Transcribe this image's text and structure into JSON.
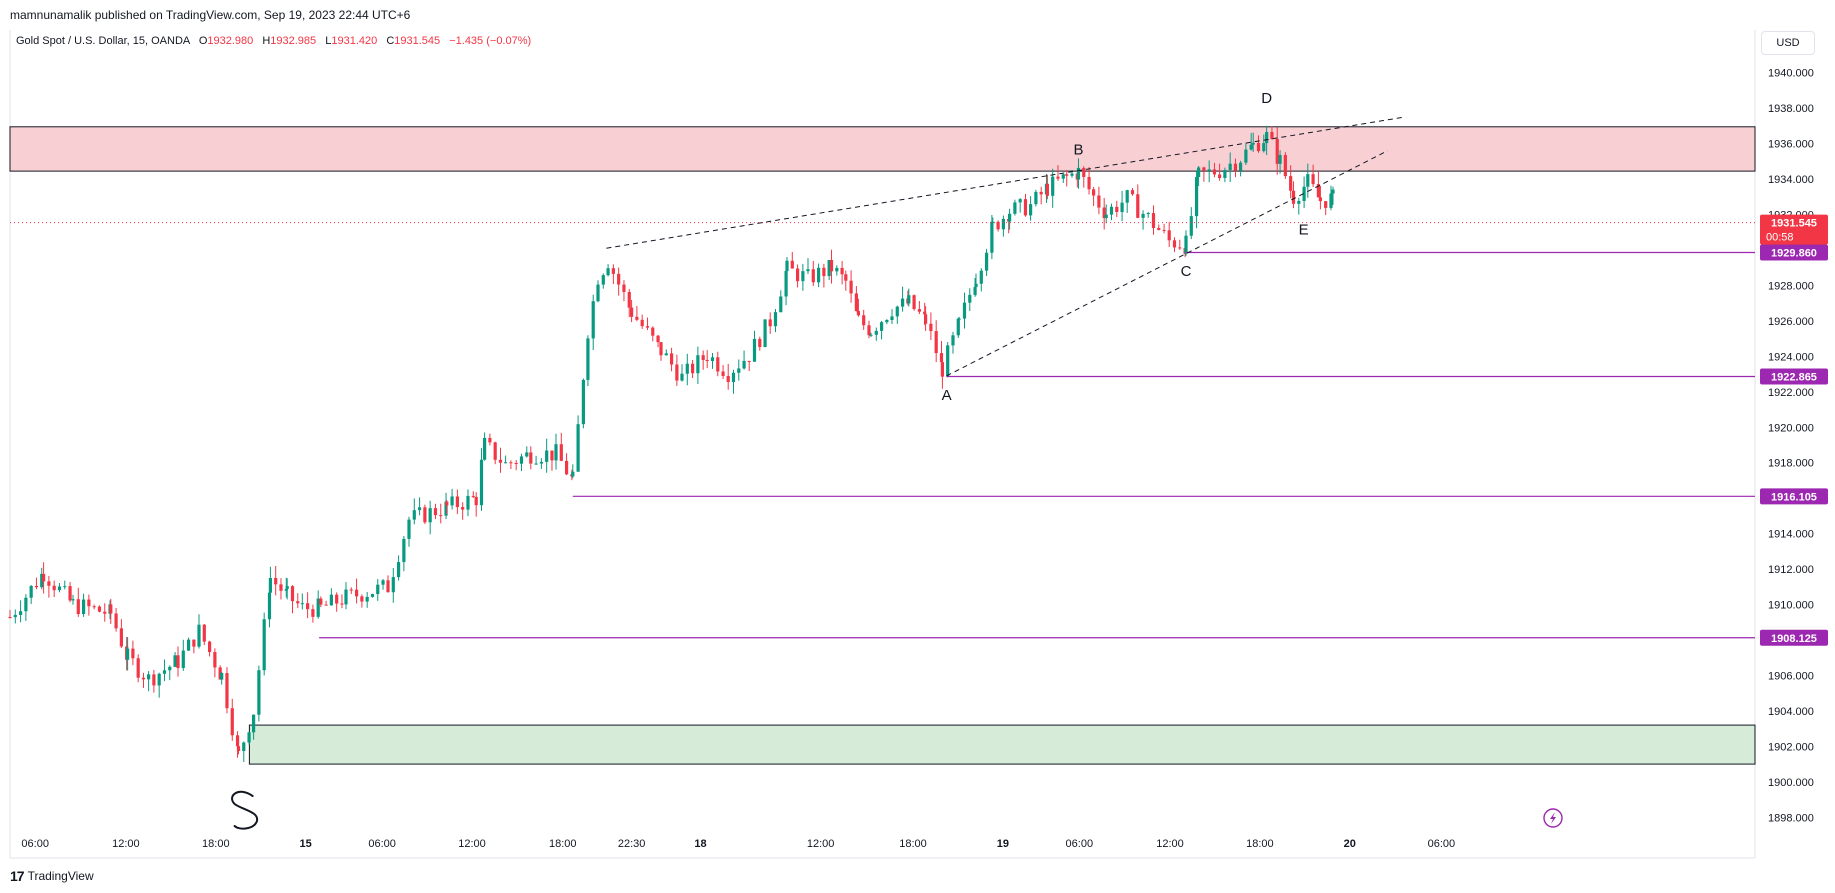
{
  "header": {
    "publisher": "mamnunamalik published on TradingView.com, Sep 19, 2023 22:44 UTC+6"
  },
  "legend": {
    "symbol": "Gold Spot / U.S. Dollar, 15, OANDA",
    "o_label": "O",
    "o_value": "1932.980",
    "h_label": "H",
    "h_value": "1932.985",
    "l_label": "L",
    "l_value": "1931.420",
    "c_label": "C",
    "c_value": "1931.545",
    "change": "−1.435 (−0.07%)"
  },
  "currency_button": "USD",
  "footer": {
    "logo": "17",
    "brand": "TradingView"
  },
  "colors": {
    "up": "#089981",
    "down": "#f23645",
    "level": "#9c27b0",
    "supply": "#f8d0d4",
    "demand": "#d6ecd9"
  },
  "chart_data": {
    "type": "candlestick",
    "title": "Gold Spot / U.S. Dollar, 15, OANDA",
    "ylim": [
      1897.0,
      1941.0
    ],
    "y_ticks": [
      "1898.000",
      "1900.000",
      "1902.000",
      "1904.000",
      "1906.000",
      "1908.000",
      "1910.000",
      "1912.000",
      "1914.000",
      "1916.000",
      "1918.000",
      "1920.000",
      "1922.000",
      "1924.000",
      "1926.000",
      "1928.000",
      "1930.000",
      "1932.000",
      "1934.000",
      "1936.000",
      "1938.000",
      "1940.000"
    ],
    "x_ticks": [
      {
        "label": "06:00",
        "pos": 0.03
      },
      {
        "label": "12:00",
        "pos": 0.138
      },
      {
        "label": "18:00",
        "pos": 0.245
      },
      {
        "label": "15",
        "pos": 0.352,
        "bold": true
      },
      {
        "label": "06:00",
        "pos": 0.443
      },
      {
        "label": "12:00",
        "pos": 0.55
      },
      {
        "label": "18:00",
        "pos": 0.658
      },
      {
        "label": "22:30",
        "pos": 0.74
      },
      {
        "label": "18",
        "pos": 0.822,
        "bold": true
      },
      {
        "label": "12:00",
        "pos": 0.965
      },
      {
        "label": "18:00",
        "pos": 1.075
      },
      {
        "label": "19",
        "pos": 1.182,
        "bold": true
      },
      {
        "label": "06:00",
        "pos": 1.273
      },
      {
        "label": "12:00",
        "pos": 1.381
      },
      {
        "label": "18:00",
        "pos": 1.488
      },
      {
        "label": "20",
        "pos": 1.595,
        "bold": true
      },
      {
        "label": "06:00",
        "pos": 1.704
      }
    ],
    "current_price": {
      "value": 1931.545,
      "label": "1931.545",
      "countdown": "00:58"
    },
    "levels": [
      {
        "label": "1929.860",
        "value": 1929.86,
        "start": 1.4
      },
      {
        "label": "1922.865",
        "value": 1922.865,
        "start": 1.115
      },
      {
        "label": "1916.105",
        "value": 1916.105,
        "start": 0.67
      },
      {
        "label": "1908.125",
        "value": 1908.125,
        "start": 0.368
      }
    ],
    "zones": [
      {
        "name": "supply",
        "from": 1934.45,
        "to": 1936.95,
        "start": 0.0
      },
      {
        "name": "demand",
        "from": 1901.0,
        "to": 1903.2,
        "start": 0.285
      }
    ],
    "pattern_points": [
      {
        "label": "A",
        "x": 1.115,
        "y": 1922.9
      },
      {
        "label": "B",
        "x": 1.272,
        "y": 1934.6
      },
      {
        "label": "C",
        "x": 1.4,
        "y": 1929.9
      },
      {
        "label": "D",
        "x": 1.496,
        "y": 1937.5
      },
      {
        "label": "E",
        "x": 1.54,
        "y": 1931.1
      }
    ],
    "trend_lines": [
      {
        "from": [
          0.71,
          1930.1
        ],
        "to": [
          1.66,
          1937.5
        ]
      },
      {
        "from": [
          1.115,
          1922.9
        ],
        "to": [
          1.64,
          1935.6
        ]
      }
    ],
    "annotation_text": "S",
    "waypoints": [
      [
        0.0,
        1909.3
      ],
      [
        0.04,
        1911.8
      ],
      [
        0.075,
        1910.0
      ],
      [
        0.12,
        1909.5
      ],
      [
        0.14,
        1907.0
      ],
      [
        0.165,
        1905.8
      ],
      [
        0.2,
        1906.8
      ],
      [
        0.225,
        1908.5
      ],
      [
        0.252,
        1906.0
      ],
      [
        0.272,
        1901.5
      ],
      [
        0.29,
        1904.0
      ],
      [
        0.31,
        1911.5
      ],
      [
        0.33,
        1910.5
      ],
      [
        0.348,
        1909.8
      ],
      [
        0.37,
        1909.8
      ],
      [
        0.4,
        1910.4
      ],
      [
        0.45,
        1911.0
      ],
      [
        0.475,
        1914.8
      ],
      [
        0.52,
        1915.5
      ],
      [
        0.555,
        1916.0
      ],
      [
        0.565,
        1919.0
      ],
      [
        0.59,
        1917.9
      ],
      [
        0.62,
        1918.5
      ],
      [
        0.65,
        1918.5
      ],
      [
        0.67,
        1917.0
      ],
      [
        0.688,
        1925.5
      ],
      [
        0.7,
        1928.5
      ],
      [
        0.712,
        1929.4
      ],
      [
        0.74,
        1926.5
      ],
      [
        0.775,
        1924.3
      ],
      [
        0.8,
        1922.8
      ],
      [
        0.83,
        1924.1
      ],
      [
        0.855,
        1923.1
      ],
      [
        0.88,
        1924.1
      ],
      [
        0.905,
        1926.0
      ],
      [
        0.925,
        1928.9
      ],
      [
        0.95,
        1928.4
      ],
      [
        0.978,
        1929.0
      ],
      [
        0.995,
        1928.2
      ],
      [
        1.01,
        1926.0
      ],
      [
        1.025,
        1925.5
      ],
      [
        1.05,
        1926.7
      ],
      [
        1.07,
        1927.0
      ],
      [
        1.09,
        1926.0
      ],
      [
        1.11,
        1923.3
      ],
      [
        1.13,
        1925.8
      ],
      [
        1.15,
        1928.5
      ],
      [
        1.17,
        1931.3
      ],
      [
        1.19,
        1932.2
      ],
      [
        1.215,
        1932.5
      ],
      [
        1.235,
        1933.5
      ],
      [
        1.258,
        1934.1
      ],
      [
        1.272,
        1934.4
      ],
      [
        1.29,
        1933.0
      ],
      [
        1.305,
        1932.1
      ],
      [
        1.33,
        1932.9
      ],
      [
        1.355,
        1931.8
      ],
      [
        1.38,
        1930.5
      ],
      [
        1.4,
        1930.3
      ],
      [
        1.415,
        1934.2
      ],
      [
        1.44,
        1934.5
      ],
      [
        1.465,
        1935.2
      ],
      [
        1.48,
        1935.9
      ],
      [
        1.496,
        1936.4
      ],
      [
        1.512,
        1935.0
      ],
      [
        1.528,
        1933.0
      ],
      [
        1.545,
        1933.8
      ],
      [
        1.56,
        1932.8
      ],
      [
        1.575,
        1932.9
      ],
      [
        1.58,
        1931.6
      ]
    ]
  }
}
